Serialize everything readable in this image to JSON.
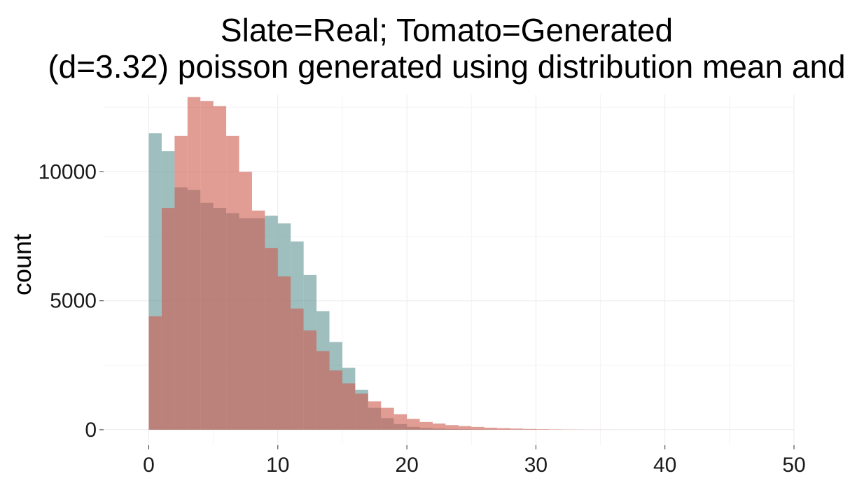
{
  "chart_data": {
    "type": "bar",
    "title": "Slate=Real; Tomato=Generated",
    "subtitle": "(d=3.32) poisson generated using distribution mean and",
    "xlabel": "",
    "ylabel": "count",
    "xlim": [
      -3.5,
      50
    ],
    "ylim": [
      -600,
      13000
    ],
    "x_ticks": [
      0,
      10,
      20,
      30,
      40,
      50
    ],
    "y_ticks": [
      0,
      5000,
      10000
    ],
    "x_tick_labels": [
      "0",
      "10",
      "20",
      "30",
      "40",
      "50"
    ],
    "y_tick_labels": [
      "0",
      "5000",
      "10000"
    ],
    "grid": true,
    "legend": "none",
    "bin_width": 1,
    "bins_start": [
      0,
      1,
      2,
      3,
      4,
      5,
      6,
      7,
      8,
      9,
      10,
      11,
      12,
      13,
      14,
      15,
      16,
      17,
      18,
      19,
      20,
      21,
      22,
      23,
      24,
      25,
      26,
      27,
      28,
      29,
      30,
      31,
      32,
      33,
      34,
      35,
      36,
      37,
      38,
      39,
      40,
      41,
      42,
      43,
      44,
      45,
      46,
      47,
      48,
      49
    ],
    "series": [
      {
        "name": "Slate",
        "color": "#5f9494",
        "values": [
          11500,
          10800,
          9400,
          9300,
          8800,
          8600,
          8400,
          8200,
          8200,
          8300,
          8000,
          7300,
          6000,
          4600,
          3400,
          2400,
          1550,
          850,
          450,
          220,
          110,
          70,
          45,
          30,
          20,
          12,
          8,
          5,
          3,
          2,
          1,
          1,
          0,
          0,
          0,
          0,
          0,
          0,
          0,
          0,
          0,
          0,
          0,
          0,
          0,
          0,
          0,
          0,
          0,
          0
        ]
      },
      {
        "name": "Tomato",
        "color": "#cd5a4d",
        "values": [
          4400,
          8600,
          11400,
          12900,
          12750,
          12550,
          11400,
          10000,
          8500,
          7050,
          5950,
          4700,
          3850,
          3050,
          2300,
          1800,
          1400,
          1100,
          850,
          600,
          420,
          300,
          240,
          180,
          140,
          110,
          80,
          60,
          45,
          30,
          20,
          12,
          8,
          5,
          3,
          2,
          1,
          1,
          0,
          0,
          0,
          0,
          0,
          0,
          0,
          0,
          0,
          0,
          0,
          0
        ]
      }
    ]
  }
}
